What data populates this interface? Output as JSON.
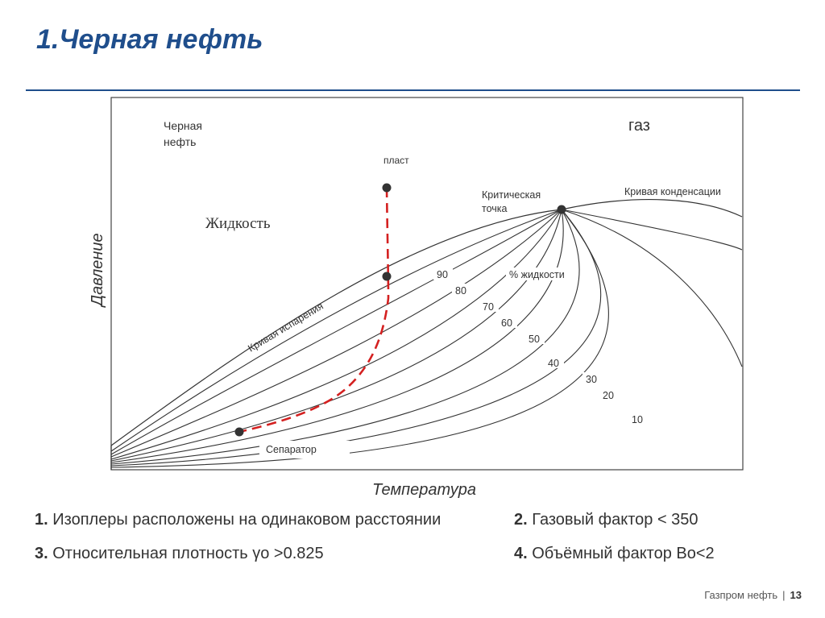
{
  "slide": {
    "title": "1.Черная нефть"
  },
  "diagram": {
    "region_labels": {
      "black_oil_line1": "Черная",
      "black_oil_line2": "нефть",
      "gas": "газ",
      "liquid": "Жидкость"
    },
    "axes": {
      "y_label": "Давление",
      "x_label": "Температура"
    },
    "points": {
      "reservoir": "пласт",
      "critical_point_line1": "Критическая",
      "critical_point_line2": "точка",
      "separator": "Сепаратор"
    },
    "curves": {
      "bubble_point": "Кривая испарения",
      "dew_point": "Кривая конденсации",
      "iso_legend": "% жидкости",
      "iso_labels": [
        "90",
        "80",
        "70",
        "60",
        "50",
        "40",
        "30",
        "20",
        "10"
      ]
    },
    "colors": {
      "path": "#d42020",
      "curves": "#333333",
      "title": "#1f4e8c"
    }
  },
  "bullets": [
    {
      "num": "1.",
      "text": " Изоплеры расположены на одинаковом расстоянии"
    },
    {
      "num": "2.",
      "text": " Газовый фактор < 350"
    },
    {
      "num": "3.",
      "text": " Относительная плотность γo >0.825"
    },
    {
      "num": "4.",
      "text": " Объёмный фактор Bo<2"
    }
  ],
  "footer": {
    "company": "Газпром нефть",
    "page": "13"
  }
}
